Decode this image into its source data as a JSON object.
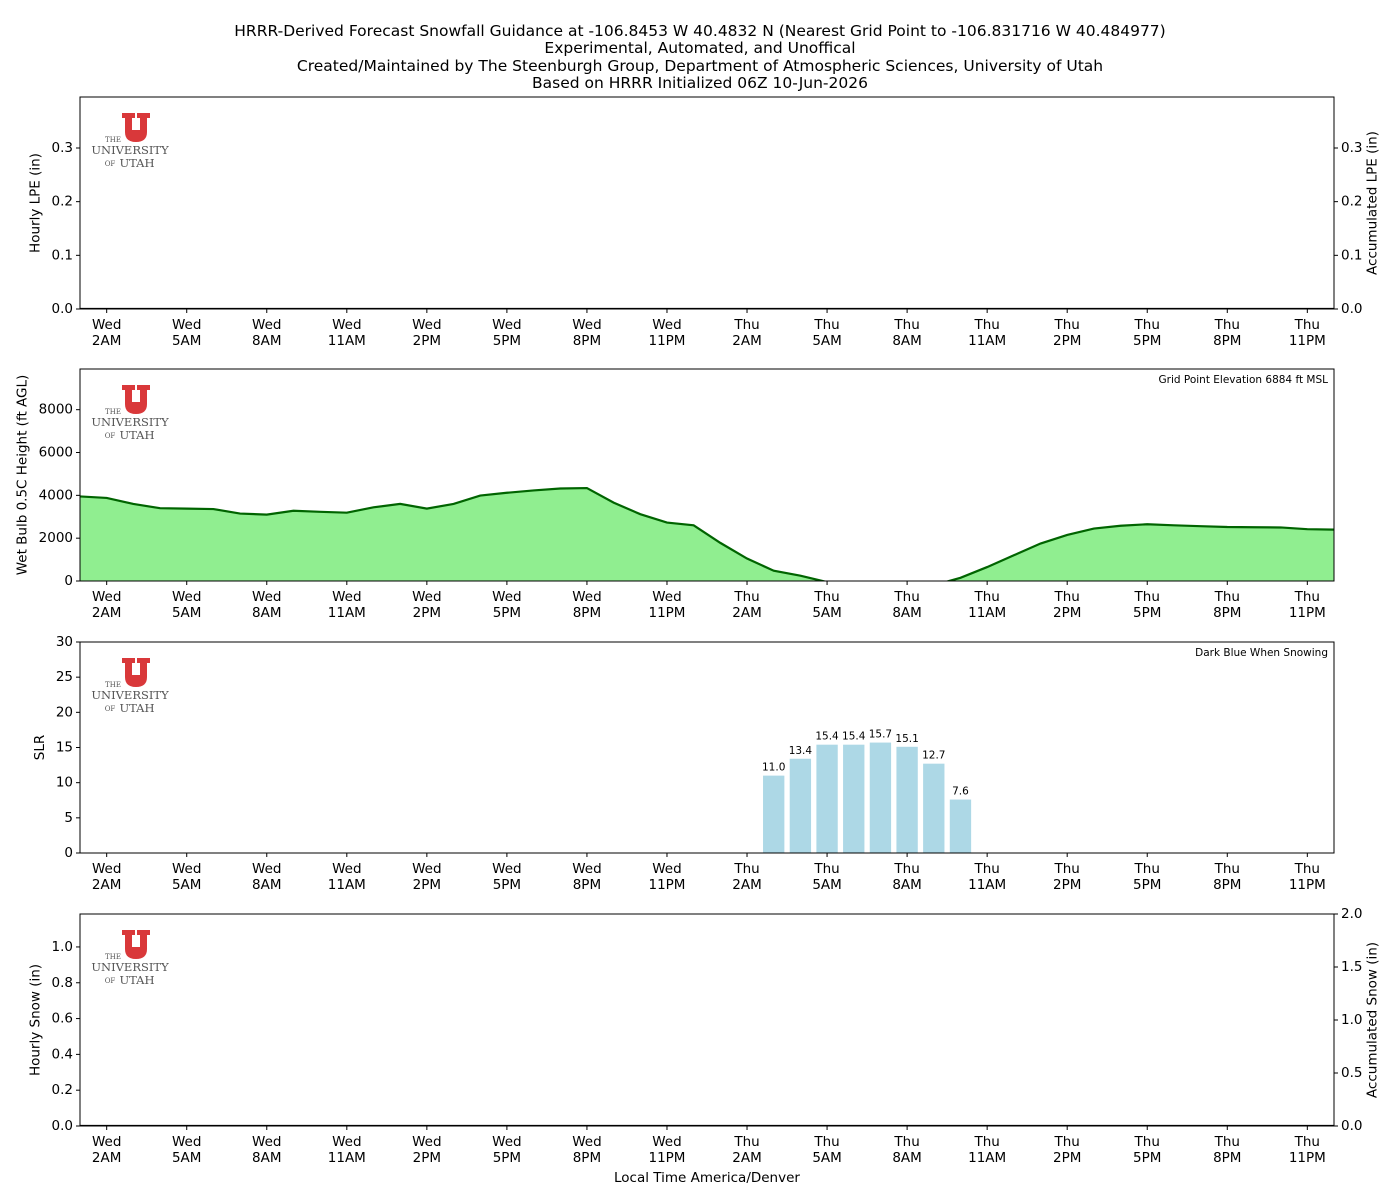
{
  "title": [
    "HRRR-Derived Forecast Snowfall Guidance at -106.8453 W 40.4832 N (Nearest Grid Point to -106.831716 W 40.484977)",
    "Experimental, Automated, and Unoffical",
    "Created/Maintained by The Steenburgh Group, Department of Atmospheric Sciences, University of Utah",
    "Based on HRRR Initialized 06Z 10-Jun-2026"
  ],
  "logo": {
    "the": "THE",
    "name": "UNIVERSITY",
    "of": "OF",
    "utah": "UTAH",
    "color": "#d9383a"
  },
  "chart_data": [
    {
      "type": "combo",
      "ylabel": "Hourly LPE (in)",
      "y2label": "Accumulated LPE (in)",
      "xlim": [
        1,
        48
      ],
      "xticks": [
        {
          "value": 2,
          "label": "Wed\n2AM"
        },
        {
          "value": 5,
          "label": "Wed\n5AM"
        },
        {
          "value": 8,
          "label": "Wed\n8AM"
        },
        {
          "value": 11,
          "label": "Wed\n11AM"
        },
        {
          "value": 14,
          "label": "Wed\n2PM"
        },
        {
          "value": 17,
          "label": "Wed\n5PM"
        },
        {
          "value": 20,
          "label": "Wed\n8PM"
        },
        {
          "value": 23,
          "label": "Wed\n11PM"
        },
        {
          "value": 26,
          "label": "Thu\n2AM"
        },
        {
          "value": 29,
          "label": "Thu\n5AM"
        },
        {
          "value": 32,
          "label": "Thu\n8AM"
        },
        {
          "value": 35,
          "label": "Thu\n11AM"
        },
        {
          "value": 38,
          "label": "Thu\n2PM"
        },
        {
          "value": 41,
          "label": "Thu\n5PM"
        },
        {
          "value": 44,
          "label": "Thu\n8PM"
        },
        {
          "value": 47,
          "label": "Thu\n11PM"
        }
      ],
      "ylim": [
        0,
        0.395
      ],
      "yticks": [
        {
          "value": 0,
          "label": "0.0"
        },
        0.1,
        0.2,
        0.3
      ],
      "y2lim": [
        0,
        0.395
      ],
      "y2ticks": [
        {
          "value": 0,
          "label": "0.0"
        },
        0.1,
        0.2,
        0.3
      ],
      "series": [
        {
          "type": "bar",
          "color": "#1e90ff",
          "x": [
            1,
            2,
            3,
            4,
            5,
            6,
            7,
            8,
            9,
            10,
            11,
            12,
            13,
            14,
            15,
            16,
            17,
            18,
            19,
            20,
            21,
            22,
            23,
            24,
            25,
            26,
            27,
            28,
            29,
            30,
            31,
            32,
            33,
            34,
            35,
            36,
            37,
            38,
            39,
            40,
            41,
            42,
            43,
            44,
            45,
            46,
            47,
            48
          ],
          "values": [
            0,
            0,
            0,
            0,
            0,
            0,
            0,
            0,
            0,
            0,
            0,
            0,
            0,
            0,
            0,
            0,
            0,
            0,
            0,
            0,
            0,
            0,
            0,
            0,
            0,
            0,
            0,
            0,
            0,
            0,
            0,
            0,
            0,
            0,
            0,
            0,
            0,
            0,
            0,
            0,
            0,
            0,
            0,
            0,
            0,
            0,
            0,
            0
          ]
        },
        {
          "type": "line",
          "axis": "y2",
          "color": "#000000",
          "x": [
            1,
            2,
            3,
            4,
            5,
            6,
            7,
            8,
            9,
            10,
            11,
            12,
            13,
            14,
            15,
            16,
            17,
            18,
            19,
            20,
            21,
            22,
            23,
            24,
            25,
            26,
            27,
            28,
            29,
            30,
            31,
            32,
            33,
            34,
            35,
            36,
            37,
            38,
            39,
            40,
            41,
            42,
            43,
            44,
            45,
            46,
            47,
            48
          ],
          "values": [
            0,
            0,
            0,
            0,
            0,
            0,
            0,
            0,
            0,
            0,
            0,
            0,
            0,
            0,
            0,
            0,
            0,
            0,
            0,
            0,
            0,
            0,
            0,
            0,
            0,
            0,
            0,
            0,
            0,
            0,
            0,
            0,
            0,
            0,
            0,
            0,
            0,
            0,
            0,
            0,
            0,
            0,
            0,
            0,
            0,
            0,
            0,
            0
          ]
        }
      ]
    },
    {
      "type": "area",
      "ylabel": "Wet Bulb 0.5C Height (ft AGL)",
      "annotation": "Grid Point Elevation 6884 ft MSL",
      "xlim": [
        1,
        48
      ],
      "xticks": [
        {
          "value": 2,
          "label": "Wed\n2AM"
        },
        {
          "value": 5,
          "label": "Wed\n5AM"
        },
        {
          "value": 8,
          "label": "Wed\n8AM"
        },
        {
          "value": 11,
          "label": "Wed\n11AM"
        },
        {
          "value": 14,
          "label": "Wed\n2PM"
        },
        {
          "value": 17,
          "label": "Wed\n5PM"
        },
        {
          "value": 20,
          "label": "Wed\n8PM"
        },
        {
          "value": 23,
          "label": "Wed\n11PM"
        },
        {
          "value": 26,
          "label": "Thu\n2AM"
        },
        {
          "value": 29,
          "label": "Thu\n5AM"
        },
        {
          "value": 32,
          "label": "Thu\n8AM"
        },
        {
          "value": 35,
          "label": "Thu\n11AM"
        },
        {
          "value": 38,
          "label": "Thu\n2PM"
        },
        {
          "value": 41,
          "label": "Thu\n5PM"
        },
        {
          "value": 44,
          "label": "Thu\n8PM"
        },
        {
          "value": 47,
          "label": "Thu\n11PM"
        }
      ],
      "ylim": [
        0,
        9900
      ],
      "yticks": [
        0,
        2000,
        4000,
        6000,
        8000
      ],
      "series": [
        {
          "color": "#006400",
          "fill": "#90ee90",
          "x": [
            1,
            2,
            3,
            4,
            5,
            6,
            7,
            8,
            9,
            10,
            11,
            12,
            13,
            14,
            15,
            16,
            17,
            18,
            19,
            20,
            21,
            22,
            23,
            24,
            25,
            26,
            27,
            28,
            29,
            30,
            31,
            32,
            33,
            34,
            35,
            36,
            37,
            38,
            39,
            40,
            41,
            42,
            43,
            44,
            45,
            46,
            47,
            48
          ],
          "values": [
            3950,
            3880,
            3600,
            3400,
            3380,
            3360,
            3150,
            3100,
            3280,
            3230,
            3190,
            3440,
            3600,
            3380,
            3600,
            3990,
            4120,
            4230,
            4320,
            4340,
            3660,
            3120,
            2730,
            2600,
            1780,
            1050,
            480,
            250,
            -50,
            -300,
            -400,
            -400,
            -200,
            150,
            650,
            1200,
            1750,
            2150,
            2450,
            2580,
            2650,
            2600,
            2560,
            2520,
            2510,
            2500,
            2420,
            2400
          ]
        }
      ]
    },
    {
      "type": "bar",
      "ylabel": "SLR",
      "annotation": "Dark Blue When Snowing",
      "xlim": [
        1,
        48
      ],
      "xticks": [
        {
          "value": 2,
          "label": "Wed\n2AM"
        },
        {
          "value": 5,
          "label": "Wed\n5AM"
        },
        {
          "value": 8,
          "label": "Wed\n8AM"
        },
        {
          "value": 11,
          "label": "Wed\n11AM"
        },
        {
          "value": 14,
          "label": "Wed\n2PM"
        },
        {
          "value": 17,
          "label": "Wed\n5PM"
        },
        {
          "value": 20,
          "label": "Wed\n8PM"
        },
        {
          "value": 23,
          "label": "Wed\n11PM"
        },
        {
          "value": 26,
          "label": "Thu\n2AM"
        },
        {
          "value": 29,
          "label": "Thu\n5AM"
        },
        {
          "value": 32,
          "label": "Thu\n8AM"
        },
        {
          "value": 35,
          "label": "Thu\n11AM"
        },
        {
          "value": 38,
          "label": "Thu\n2PM"
        },
        {
          "value": 41,
          "label": "Thu\n5PM"
        },
        {
          "value": 44,
          "label": "Thu\n8PM"
        },
        {
          "value": 47,
          "label": "Thu\n11PM"
        }
      ],
      "ylim": [
        0,
        30
      ],
      "yticks": [
        0,
        5,
        10,
        15,
        20,
        25,
        30
      ],
      "series": [
        {
          "color": "#add8e6",
          "x": [
            27,
            28,
            29,
            30,
            31,
            32,
            33,
            34
          ],
          "values": [
            11.0,
            13.4,
            15.4,
            15.4,
            15.7,
            15.1,
            12.7,
            7.6
          ],
          "value_labels": [
            "11.0",
            "13.4",
            "15.4",
            "15.4",
            "15.7",
            "15.1",
            "12.7",
            "7.6"
          ]
        }
      ]
    },
    {
      "type": "combo",
      "ylabel": "Hourly Snow (in)",
      "y2label": "Accumulated Snow (in)",
      "xlabel": "Local Time America/Denver",
      "xlim": [
        1,
        48
      ],
      "xticks": [
        {
          "value": 2,
          "label": "Wed\n2AM"
        },
        {
          "value": 5,
          "label": "Wed\n5AM"
        },
        {
          "value": 8,
          "label": "Wed\n8AM"
        },
        {
          "value": 11,
          "label": "Wed\n11AM"
        },
        {
          "value": 14,
          "label": "Wed\n2PM"
        },
        {
          "value": 17,
          "label": "Wed\n5PM"
        },
        {
          "value": 20,
          "label": "Wed\n8PM"
        },
        {
          "value": 23,
          "label": "Wed\n11PM"
        },
        {
          "value": 26,
          "label": "Thu\n2AM"
        },
        {
          "value": 29,
          "label": "Thu\n5AM"
        },
        {
          "value": 32,
          "label": "Thu\n8AM"
        },
        {
          "value": 35,
          "label": "Thu\n11AM"
        },
        {
          "value": 38,
          "label": "Thu\n2PM"
        },
        {
          "value": 41,
          "label": "Thu\n5PM"
        },
        {
          "value": 44,
          "label": "Thu\n8PM"
        },
        {
          "value": 47,
          "label": "Thu\n11PM"
        }
      ],
      "ylim": [
        0,
        1.184
      ],
      "yticks": [
        {
          "value": 0,
          "label": "0.0"
        },
        0.2,
        0.4,
        0.6,
        0.8,
        {
          "value": 1,
          "label": "1.0"
        }
      ],
      "y2lim": [
        0,
        2
      ],
      "y2ticks": [
        {
          "value": 0,
          "label": "0.0"
        },
        0.5,
        {
          "value": 1,
          "label": "1.0"
        },
        1.5,
        {
          "value": 2,
          "label": "2.0"
        }
      ],
      "series": [
        {
          "type": "bar",
          "color": "#00008b",
          "x": [
            1,
            2,
            3,
            4,
            5,
            6,
            7,
            8,
            9,
            10,
            11,
            12,
            13,
            14,
            15,
            16,
            17,
            18,
            19,
            20,
            21,
            22,
            23,
            24,
            25,
            26,
            27,
            28,
            29,
            30,
            31,
            32,
            33,
            34,
            35,
            36,
            37,
            38,
            39,
            40,
            41,
            42,
            43,
            44,
            45,
            46,
            47,
            48
          ],
          "values": [
            0,
            0,
            0,
            0,
            0,
            0,
            0,
            0,
            0,
            0,
            0,
            0,
            0,
            0,
            0,
            0,
            0,
            0,
            0,
            0,
            0,
            0,
            0,
            0,
            0,
            0,
            0,
            0,
            0,
            0,
            0,
            0,
            0,
            0,
            0,
            0,
            0,
            0,
            0,
            0,
            0,
            0,
            0,
            0,
            0,
            0,
            0,
            0
          ]
        },
        {
          "type": "line",
          "axis": "y2",
          "color": "#000000",
          "x": [
            1,
            2,
            3,
            4,
            5,
            6,
            7,
            8,
            9,
            10,
            11,
            12,
            13,
            14,
            15,
            16,
            17,
            18,
            19,
            20,
            21,
            22,
            23,
            24,
            25,
            26,
            27,
            28,
            29,
            30,
            31,
            32,
            33,
            34,
            35,
            36,
            37,
            38,
            39,
            40,
            41,
            42,
            43,
            44,
            45,
            46,
            47,
            48
          ],
          "values": [
            0,
            0,
            0,
            0,
            0,
            0,
            0,
            0,
            0,
            0,
            0,
            0,
            0,
            0,
            0,
            0,
            0,
            0,
            0,
            0,
            0,
            0,
            0,
            0,
            0,
            0,
            0,
            0,
            0,
            0,
            0,
            0,
            0,
            0,
            0,
            0,
            0,
            0,
            0,
            0,
            0,
            0,
            0,
            0,
            0,
            0,
            0,
            0
          ]
        }
      ]
    }
  ]
}
